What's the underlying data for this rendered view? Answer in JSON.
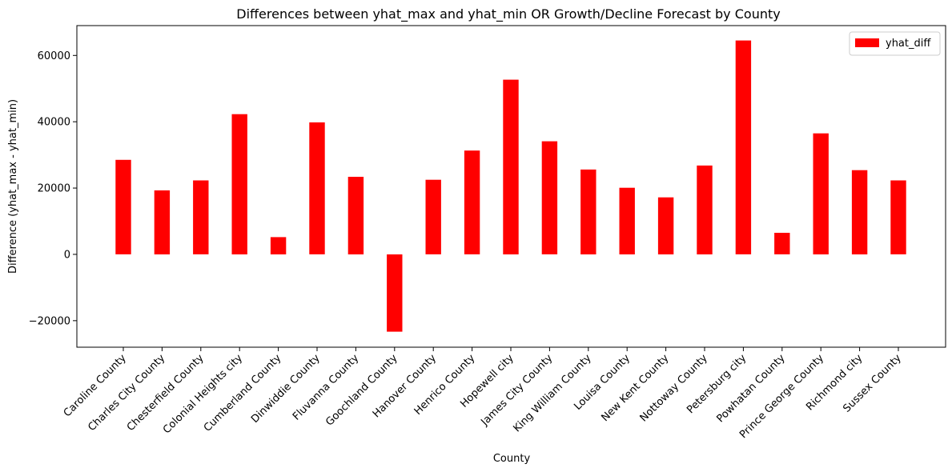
{
  "chart_data": {
    "type": "bar",
    "title": "Differences between yhat_max and yhat_min OR Growth/Decline Forecast by County",
    "xlabel": "County",
    "ylabel": "Difference (yhat_max - yhat_min)",
    "ylim": [
      -28000,
      69000
    ],
    "yticks": [
      -20000,
      0,
      20000,
      40000,
      60000
    ],
    "grid": false,
    "legend_position": "top-right",
    "bar_color": "#ff0000",
    "series": [
      {
        "name": "yhat_diff",
        "values": [
          28500,
          19300,
          22300,
          42300,
          5200,
          39800,
          23400,
          -23300,
          22500,
          31300,
          52700,
          34100,
          25600,
          20100,
          17200,
          26800,
          64500,
          6500,
          36500,
          25400,
          22300
        ]
      }
    ],
    "categories": [
      "Caroline County",
      "Charles City County",
      "Chesterfield County",
      "Colonial Heights city",
      "Cumberland County",
      "Dinwiddie County",
      "Fluvanna County",
      "Goochland County",
      "Hanover County",
      "Henrico County",
      "Hopewell city",
      "James City County",
      "King William County",
      "Louisa County",
      "New Kent County",
      "Nottoway County",
      "Petersburg city",
      "Powhatan County",
      "Prince George County",
      "Richmond city",
      "Sussex County"
    ]
  }
}
